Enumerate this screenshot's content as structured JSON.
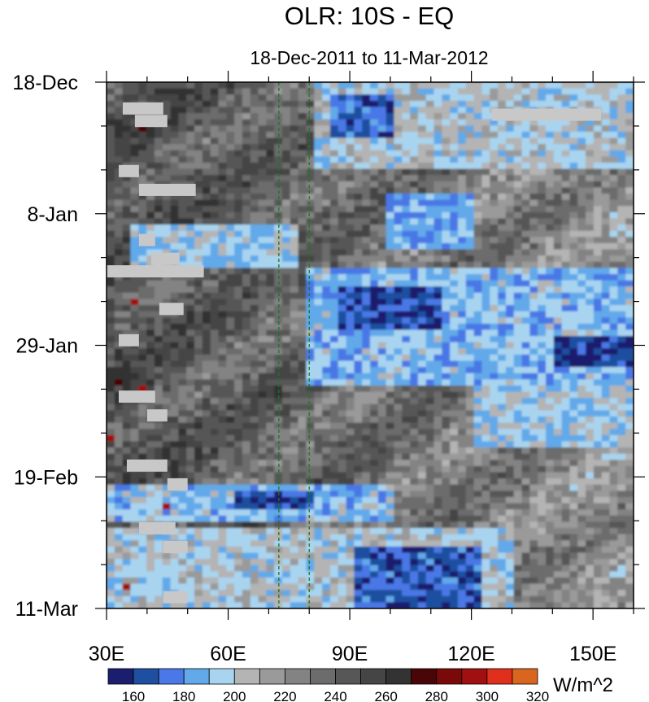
{
  "chart_data": {
    "type": "heatmap",
    "title": "OLR: 10S - EQ",
    "subtitle": "18-Dec-2011 to 11-Mar-2012",
    "units_label": "W/m^2",
    "x_axis": {
      "range": [
        30,
        160
      ],
      "ticks": [
        30,
        60,
        90,
        120,
        150
      ],
      "tick_labels": [
        "30E",
        "60E",
        "90E",
        "120E",
        "150E"
      ],
      "minor_step": 10
    },
    "y_axis": {
      "range_days": [
        0,
        84
      ],
      "ticks_days": [
        0,
        21,
        42,
        63,
        84
      ],
      "tick_labels": [
        "18-Dec",
        "8-Jan",
        "29-Jan",
        "19-Feb",
        "11-Mar"
      ],
      "minor_step_days": 7
    },
    "reference_lines_lon": [
      72.5,
      80
    ],
    "colorbar": {
      "labels": [
        "160",
        "180",
        "200",
        "220",
        "240",
        "260",
        "280",
        "300",
        "320"
      ],
      "colors": [
        "#1b1e6e",
        "#1e4fa0",
        "#4a78e6",
        "#62a9ea",
        "#a9d4f0",
        "#b4b4b4",
        "#9a9a9a",
        "#838383",
        "#6c6c6c",
        "#575757",
        "#454545",
        "#333333",
        "#4a0606",
        "#7a0a0a",
        "#a01010",
        "#e0301c",
        "#d9661e"
      ]
    },
    "missing_color": "#c8c8c8",
    "bands": [
      {
        "from_day": 0,
        "to_day": 14,
        "from_lon": 82,
        "to_lon": 160,
        "value": 200
      },
      {
        "from_day": 2,
        "to_day": 9,
        "from_lon": 86,
        "to_lon": 100,
        "value": 170
      },
      {
        "from_day": 18,
        "to_day": 27,
        "from_lon": 98,
        "to_lon": 120,
        "value": 185
      },
      {
        "from_day": 23,
        "to_day": 30,
        "from_lon": 35,
        "to_lon": 78,
        "value": 195
      },
      {
        "from_day": 30,
        "to_day": 48,
        "from_lon": 80,
        "to_lon": 160,
        "value": 188
      },
      {
        "from_day": 33,
        "to_day": 40,
        "from_lon": 88,
        "to_lon": 112,
        "value": 165
      },
      {
        "from_day": 41,
        "to_day": 45,
        "from_lon": 140,
        "to_lon": 160,
        "value": 162
      },
      {
        "from_day": 47,
        "to_day": 58,
        "from_lon": 120,
        "to_lon": 160,
        "value": 195
      },
      {
        "from_day": 64,
        "to_day": 70,
        "from_lon": 30,
        "to_lon": 100,
        "value": 190
      },
      {
        "from_day": 65,
        "to_day": 68,
        "from_lon": 62,
        "to_lon": 82,
        "value": 168
      },
      {
        "from_day": 71,
        "to_day": 84,
        "from_lon": 30,
        "to_lon": 130,
        "value": 200
      },
      {
        "from_day": 74,
        "to_day": 84,
        "from_lon": 92,
        "to_lon": 122,
        "value": 168
      }
    ],
    "missing_segments": [
      {
        "day": 4,
        "from_lon": 34,
        "to_lon": 44
      },
      {
        "day": 6,
        "from_lon": 37,
        "to_lon": 45
      },
      {
        "day": 14,
        "from_lon": 33,
        "to_lon": 38
      },
      {
        "day": 17,
        "from_lon": 38,
        "to_lon": 52
      },
      {
        "day": 25,
        "from_lon": 38,
        "to_lon": 42
      },
      {
        "day": 28,
        "from_lon": 41,
        "to_lon": 48
      },
      {
        "day": 30,
        "from_lon": 30,
        "to_lon": 54
      },
      {
        "day": 36,
        "from_lon": 43,
        "to_lon": 49
      },
      {
        "day": 41,
        "from_lon": 33,
        "to_lon": 38
      },
      {
        "day": 50,
        "from_lon": 33,
        "to_lon": 42
      },
      {
        "day": 53,
        "from_lon": 40,
        "to_lon": 45
      },
      {
        "day": 61,
        "from_lon": 35,
        "to_lon": 45
      },
      {
        "day": 64,
        "from_lon": 45,
        "to_lon": 50
      },
      {
        "day": 71,
        "from_lon": 38,
        "to_lon": 47
      },
      {
        "day": 74,
        "from_lon": 44,
        "to_lon": 50
      },
      {
        "day": 82,
        "from_lon": 44,
        "to_lon": 50
      },
      {
        "day": 5,
        "from_lon": 125,
        "to_lon": 152
      }
    ]
  }
}
